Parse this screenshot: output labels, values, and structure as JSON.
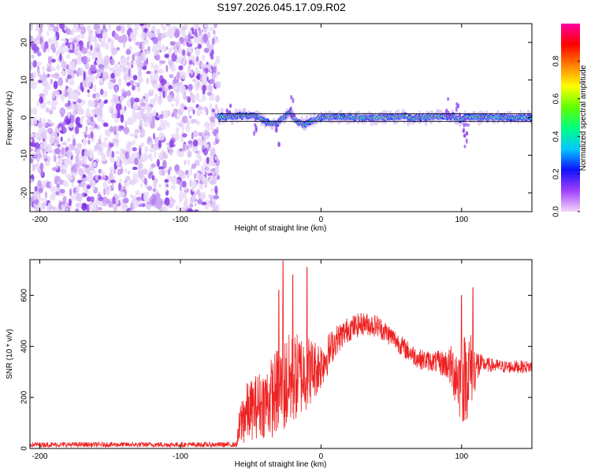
{
  "title": "S197.2026.045.17.09.R02",
  "chart_data": [
    {
      "type": "heatmap",
      "xlabel": "Height of straight line (km)",
      "ylabel": "Frequency (Hz)",
      "xlim": [
        -207,
        150
      ],
      "ylim": [
        -25,
        25
      ],
      "xticks": [
        -200,
        -100,
        0,
        100
      ],
      "xtick_labels": [
        "-200",
        "-100",
        "0",
        "100"
      ],
      "yticks": [
        -20,
        -10,
        0,
        10,
        20
      ],
      "ytick_labels": [
        "-20",
        "-10",
        "0",
        "10",
        "20"
      ],
      "noise_region_x": [
        -207,
        -73
      ],
      "trace": {
        "x": [
          -73,
          -65,
          -55,
          -45,
          -40,
          -33,
          -28,
          -22,
          -18,
          -12,
          -5,
          0,
          5,
          20,
          40,
          55,
          60,
          63,
          68,
          75,
          85,
          90,
          95,
          100,
          103,
          107,
          115,
          130,
          150
        ],
        "freq": [
          0.2,
          0.3,
          0.5,
          0.4,
          -1.0,
          -1.8,
          -0.5,
          1.5,
          -0.8,
          -2.0,
          -0.6,
          0.0,
          0.2,
          0.1,
          0.0,
          0.2,
          0.5,
          -0.3,
          0.0,
          0.1,
          0.3,
          0.2,
          0.4,
          -0.8,
          0.5,
          0.2,
          0.1,
          0.0,
          0.0
        ]
      },
      "reference_lines_hz": [
        -1,
        1
      ],
      "colorbar": {
        "label": "Normalized spectral amplitude",
        "range": [
          0.0,
          1.0
        ],
        "ticks": [
          0.0,
          0.2,
          0.4,
          0.6,
          0.8
        ],
        "tick_labels": [
          "0.0",
          "0.2",
          "0.4",
          "0.6",
          "0.8"
        ],
        "colors": [
          "#f4d6f6",
          "#a040ff",
          "#1010ff",
          "#00c8ff",
          "#00ff80",
          "#60ff00",
          "#ffff00",
          "#ff8000",
          "#ff0000",
          "#ff00a0"
        ]
      }
    },
    {
      "type": "line",
      "xlabel": "Height of straight line (km)",
      "ylabel": "SNR (10 * v/v)",
      "xlim": [
        -207,
        150
      ],
      "ylim": [
        0,
        740
      ],
      "xticks": [
        -200,
        -100,
        0,
        100
      ],
      "xtick_labels": [
        "-200",
        "-100",
        "0",
        "100"
      ],
      "yticks": [
        0,
        200,
        400,
        600
      ],
      "ytick_labels": [
        "0",
        "200",
        "400",
        "600"
      ],
      "color": "#ee2222",
      "envelope": {
        "x": [
          -207,
          -60,
          -58,
          -55,
          -50,
          -45,
          -40,
          -35,
          -30,
          -25,
          -20,
          -15,
          -10,
          -5,
          0,
          5,
          10,
          20,
          30,
          40,
          50,
          60,
          70,
          80,
          90,
          95,
          100,
          105,
          110,
          115,
          130,
          150
        ],
        "mean": [
          15,
          15,
          80,
          130,
          150,
          170,
          180,
          200,
          230,
          250,
          270,
          290,
          300,
          310,
          330,
          370,
          420,
          470,
          490,
          480,
          440,
          390,
          350,
          340,
          330,
          300,
          260,
          300,
          320,
          330,
          320,
          320
        ],
        "amp": [
          10,
          10,
          80,
          120,
          120,
          130,
          140,
          160,
          180,
          200,
          180,
          170,
          150,
          120,
          100,
          80,
          60,
          50,
          45,
          45,
          40,
          40,
          40,
          40,
          60,
          120,
          180,
          180,
          90,
          30,
          25,
          25
        ]
      },
      "spikes": [
        {
          "x": -30,
          "y": 620
        },
        {
          "x": -27,
          "y": 735
        },
        {
          "x": -20,
          "y": 680
        },
        {
          "x": -10,
          "y": 710
        },
        {
          "x": 100,
          "y": 600
        },
        {
          "x": 108,
          "y": 630
        }
      ]
    }
  ]
}
